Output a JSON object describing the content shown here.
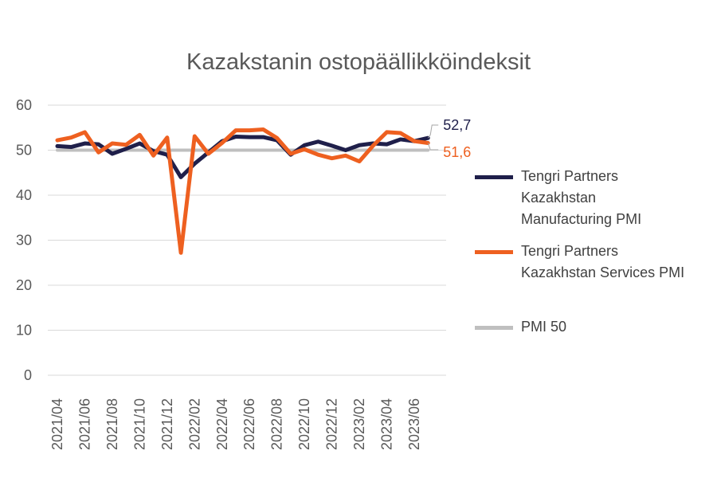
{
  "chart_data": {
    "type": "line",
    "title": "Kazakstanin ostopäällikköindeksit",
    "xlabel": "",
    "ylabel": "",
    "ylim": [
      0,
      60
    ],
    "yticks": [
      "0",
      "10",
      "20",
      "30",
      "40",
      "50",
      "60"
    ],
    "xtick_labels": [
      "2021/04",
      "2021/06",
      "2021/08",
      "2021/10",
      "2021/12",
      "2022/02",
      "2022/04",
      "2022/06",
      "2022/08",
      "2022/10",
      "2022/12",
      "2023/02",
      "2023/04",
      "2023/06"
    ],
    "x": [
      "2021/04",
      "2021/05",
      "2021/06",
      "2021/07",
      "2021/08",
      "2021/09",
      "2021/10",
      "2021/11",
      "2021/12",
      "2022/01",
      "2022/02",
      "2022/03",
      "2022/04",
      "2022/05",
      "2022/06",
      "2022/07",
      "2022/08",
      "2022/09",
      "2022/10",
      "2022/11",
      "2022/12",
      "2023/01",
      "2023/02",
      "2023/03",
      "2023/04",
      "2023/05",
      "2023/06",
      "2023/07"
    ],
    "grid": true,
    "legend_position": "right",
    "series": [
      {
        "name": "Tengri Partners Kazakhstan Manufacturing PMI",
        "legend_lines": [
          "Tengri Partners",
          "Kazakhstan",
          "Manufacturing PMI"
        ],
        "color": "#1f1f4a",
        "values": [
          50.9,
          50.7,
          51.5,
          51.3,
          49.2,
          50.3,
          51.5,
          49.8,
          49.0,
          44.0,
          47.0,
          49.5,
          52.0,
          53.0,
          52.9,
          52.9,
          52.2,
          49.0,
          51.1,
          51.9,
          51.0,
          50.0,
          51.1,
          51.5,
          51.3,
          52.4,
          52.0,
          52.7
        ],
        "end_label": "52,7"
      },
      {
        "name": "Tengri Partners Kazakhstan Services PMI",
        "legend_lines": [
          "Tengri Partners",
          "Kazakhstan Services PMI"
        ],
        "color": "#ee6020",
        "values": [
          52.2,
          52.8,
          54.0,
          49.5,
          51.5,
          51.2,
          53.4,
          48.8,
          52.8,
          27.2,
          53.1,
          49.2,
          51.6,
          54.4,
          54.4,
          54.6,
          52.7,
          49.2,
          50.2,
          49.0,
          48.2,
          48.8,
          47.5,
          51.0,
          54.0,
          53.8,
          52.0,
          51.6
        ],
        "end_label": "51,6"
      },
      {
        "name": "PMI 50",
        "legend_lines": [
          "PMI 50"
        ],
        "color": "#bfbfbf",
        "values": [
          50,
          50,
          50,
          50,
          50,
          50,
          50,
          50,
          50,
          50,
          50,
          50,
          50,
          50,
          50,
          50,
          50,
          50,
          50,
          50,
          50,
          50,
          50,
          50,
          50,
          50,
          50,
          50
        ]
      }
    ]
  }
}
